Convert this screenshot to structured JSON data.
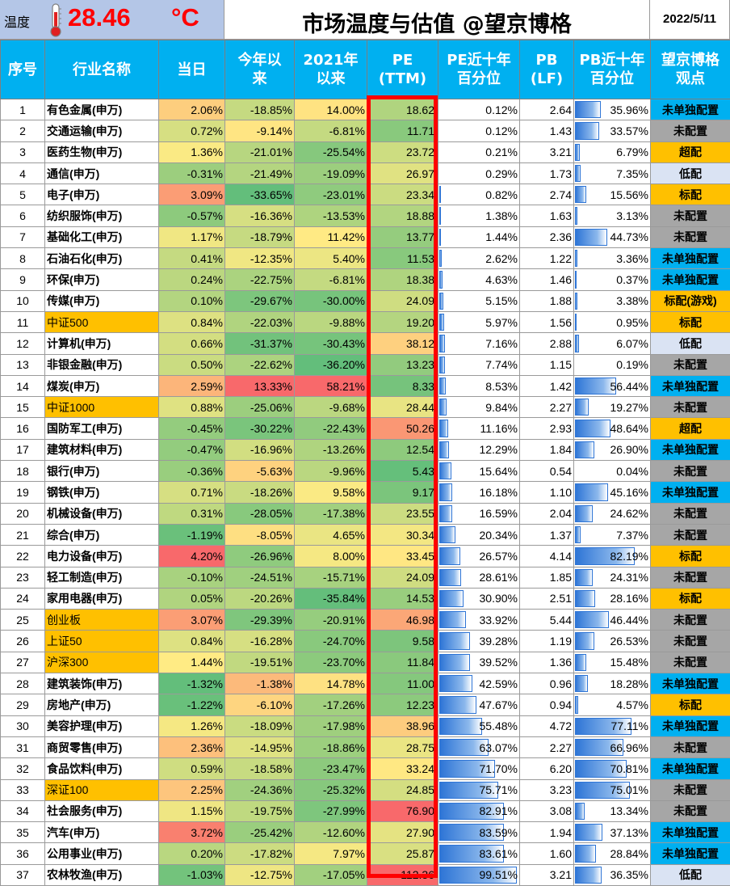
{
  "header": {
    "temp_label": "温度",
    "temp_value": "28.46",
    "temp_unit": "°C",
    "title": "市场温度与估值 @望京博格",
    "date": "2022/5/11"
  },
  "columns": [
    "序号",
    "行业名称",
    "当日",
    "今年以\n来",
    "2021年\n以来",
    "PE\n(TTM)",
    "PE近十年\n百分位",
    "PB\n(LF)",
    "PB近十年\n百分位",
    "望京博格\n观点"
  ],
  "rows": [
    {
      "idx": "1",
      "name": "有色金属(申万)",
      "day": "2.06%",
      "ytd": "-18.85%",
      "since21": "14.00%",
      "pe": "18.62",
      "pe_pct": "0.12%",
      "pb": "2.64",
      "pb_pct": "35.96%",
      "view": "未单独配置",
      "is_index": false
    },
    {
      "idx": "2",
      "name": "交通运输(申万)",
      "day": "0.72%",
      "ytd": "-9.14%",
      "since21": "-6.81%",
      "pe": "11.71",
      "pe_pct": "0.12%",
      "pb": "1.43",
      "pb_pct": "33.57%",
      "view": "未配置",
      "is_index": false
    },
    {
      "idx": "3",
      "name": "医药生物(申万)",
      "day": "1.36%",
      "ytd": "-21.01%",
      "since21": "-25.54%",
      "pe": "23.72",
      "pe_pct": "0.21%",
      "pb": "3.21",
      "pb_pct": "6.79%",
      "view": "超配",
      "is_index": false
    },
    {
      "idx": "4",
      "name": "通信(申万)",
      "day": "-0.31%",
      "ytd": "-21.49%",
      "since21": "-19.09%",
      "pe": "26.97",
      "pe_pct": "0.29%",
      "pb": "1.73",
      "pb_pct": "7.35%",
      "view": "低配",
      "is_index": false
    },
    {
      "idx": "5",
      "name": "电子(申万)",
      "day": "3.09%",
      "ytd": "-33.65%",
      "since21": "-23.01%",
      "pe": "23.34",
      "pe_pct": "0.82%",
      "pb": "2.74",
      "pb_pct": "15.56%",
      "view": "标配",
      "is_index": false
    },
    {
      "idx": "6",
      "name": "纺织服饰(申万)",
      "day": "-0.57%",
      "ytd": "-16.36%",
      "since21": "-13.53%",
      "pe": "18.88",
      "pe_pct": "1.38%",
      "pb": "1.63",
      "pb_pct": "3.13%",
      "view": "未配置",
      "is_index": false
    },
    {
      "idx": "7",
      "name": "基础化工(申万)",
      "day": "1.17%",
      "ytd": "-18.79%",
      "since21": "11.42%",
      "pe": "13.77",
      "pe_pct": "1.44%",
      "pb": "2.36",
      "pb_pct": "44.73%",
      "view": "未配置",
      "is_index": false
    },
    {
      "idx": "8",
      "name": "石油石化(申万)",
      "day": "0.41%",
      "ytd": "-12.35%",
      "since21": "5.40%",
      "pe": "11.53",
      "pe_pct": "2.62%",
      "pb": "1.22",
      "pb_pct": "3.36%",
      "view": "未单独配置",
      "is_index": false
    },
    {
      "idx": "9",
      "name": "环保(申万)",
      "day": "0.24%",
      "ytd": "-22.75%",
      "since21": "-6.81%",
      "pe": "18.38",
      "pe_pct": "4.63%",
      "pb": "1.46",
      "pb_pct": "0.37%",
      "view": "未单独配置",
      "is_index": false
    },
    {
      "idx": "10",
      "name": "传媒(申万)",
      "day": "0.10%",
      "ytd": "-29.67%",
      "since21": "-30.00%",
      "pe": "24.09",
      "pe_pct": "5.15%",
      "pb": "1.88",
      "pb_pct": "3.38%",
      "view": "标配(游戏)",
      "is_index": false
    },
    {
      "idx": "11",
      "name": "中证500",
      "day": "0.84%",
      "ytd": "-22.03%",
      "since21": "-9.88%",
      "pe": "19.20",
      "pe_pct": "5.97%",
      "pb": "1.56",
      "pb_pct": "0.95%",
      "view": "标配",
      "is_index": true
    },
    {
      "idx": "12",
      "name": "计算机(申万)",
      "day": "0.66%",
      "ytd": "-31.37%",
      "since21": "-30.43%",
      "pe": "38.12",
      "pe_pct": "7.16%",
      "pb": "2.88",
      "pb_pct": "6.07%",
      "view": "低配",
      "is_index": false
    },
    {
      "idx": "13",
      "name": "非银金融(申万)",
      "day": "0.50%",
      "ytd": "-22.62%",
      "since21": "-36.20%",
      "pe": "13.23",
      "pe_pct": "7.74%",
      "pb": "1.15",
      "pb_pct": "0.19%",
      "view": "未配置",
      "is_index": false
    },
    {
      "idx": "14",
      "name": "煤炭(申万)",
      "day": "2.59%",
      "ytd": "13.33%",
      "since21": "58.21%",
      "pe": "8.33",
      "pe_pct": "8.53%",
      "pb": "1.42",
      "pb_pct": "56.44%",
      "view": "未单独配置",
      "is_index": false
    },
    {
      "idx": "15",
      "name": "中证1000",
      "day": "0.88%",
      "ytd": "-25.06%",
      "since21": "-9.68%",
      "pe": "28.44",
      "pe_pct": "9.84%",
      "pb": "2.27",
      "pb_pct": "19.27%",
      "view": "未配置",
      "is_index": true
    },
    {
      "idx": "16",
      "name": "国防军工(申万)",
      "day": "-0.45%",
      "ytd": "-30.22%",
      "since21": "-22.43%",
      "pe": "50.26",
      "pe_pct": "11.16%",
      "pb": "2.93",
      "pb_pct": "48.64%",
      "view": "超配",
      "is_index": false
    },
    {
      "idx": "17",
      "name": "建筑材料(申万)",
      "day": "-0.47%",
      "ytd": "-16.96%",
      "since21": "-13.26%",
      "pe": "12.54",
      "pe_pct": "12.29%",
      "pb": "1.84",
      "pb_pct": "26.90%",
      "view": "未单独配置",
      "is_index": false
    },
    {
      "idx": "18",
      "name": "银行(申万)",
      "day": "-0.36%",
      "ytd": "-5.63%",
      "since21": "-9.96%",
      "pe": "5.43",
      "pe_pct": "15.64%",
      "pb": "0.54",
      "pb_pct": "0.04%",
      "view": "未配置",
      "is_index": false
    },
    {
      "idx": "19",
      "name": "钢铁(申万)",
      "day": "0.71%",
      "ytd": "-18.26%",
      "since21": "9.58%",
      "pe": "9.17",
      "pe_pct": "16.18%",
      "pb": "1.10",
      "pb_pct": "45.16%",
      "view": "未单独配置",
      "is_index": false
    },
    {
      "idx": "20",
      "name": "机械设备(申万)",
      "day": "0.31%",
      "ytd": "-28.05%",
      "since21": "-17.38%",
      "pe": "23.55",
      "pe_pct": "16.59%",
      "pb": "2.04",
      "pb_pct": "24.62%",
      "view": "未配置",
      "is_index": false
    },
    {
      "idx": "21",
      "name": "综合(申万)",
      "day": "-1.19%",
      "ytd": "-8.05%",
      "since21": "4.65%",
      "pe": "30.34",
      "pe_pct": "20.34%",
      "pb": "1.37",
      "pb_pct": "7.37%",
      "view": "未配置",
      "is_index": false
    },
    {
      "idx": "22",
      "name": "电力设备(申万)",
      "day": "4.20%",
      "ytd": "-26.96%",
      "since21": "8.00%",
      "pe": "33.45",
      "pe_pct": "26.57%",
      "pb": "4.14",
      "pb_pct": "82.19%",
      "view": "标配",
      "is_index": false
    },
    {
      "idx": "23",
      "name": "轻工制造(申万)",
      "day": "-0.10%",
      "ytd": "-24.51%",
      "since21": "-15.71%",
      "pe": "24.09",
      "pe_pct": "28.61%",
      "pb": "1.85",
      "pb_pct": "24.31%",
      "view": "未配置",
      "is_index": false
    },
    {
      "idx": "24",
      "name": "家用电器(申万)",
      "day": "0.05%",
      "ytd": "-20.26%",
      "since21": "-35.84%",
      "pe": "14.53",
      "pe_pct": "30.90%",
      "pb": "2.51",
      "pb_pct": "28.16%",
      "view": "标配",
      "is_index": false
    },
    {
      "idx": "25",
      "name": "创业板",
      "day": "3.07%",
      "ytd": "-29.39%",
      "since21": "-20.91%",
      "pe": "46.98",
      "pe_pct": "33.92%",
      "pb": "5.44",
      "pb_pct": "46.44%",
      "view": "未配置",
      "is_index": true
    },
    {
      "idx": "26",
      "name": "上证50",
      "day": "0.84%",
      "ytd": "-16.28%",
      "since21": "-24.70%",
      "pe": "9.58",
      "pe_pct": "39.28%",
      "pb": "1.19",
      "pb_pct": "26.53%",
      "view": "未配置",
      "is_index": true
    },
    {
      "idx": "27",
      "name": "沪深300",
      "day": "1.44%",
      "ytd": "-19.51%",
      "since21": "-23.70%",
      "pe": "11.84",
      "pe_pct": "39.52%",
      "pb": "1.36",
      "pb_pct": "15.48%",
      "view": "未配置",
      "is_index": true
    },
    {
      "idx": "28",
      "name": "建筑装饰(申万)",
      "day": "-1.32%",
      "ytd": "-1.38%",
      "since21": "14.78%",
      "pe": "11.00",
      "pe_pct": "42.59%",
      "pb": "0.96",
      "pb_pct": "18.28%",
      "view": "未单独配置",
      "is_index": false
    },
    {
      "idx": "29",
      "name": "房地产(申万)",
      "day": "-1.22%",
      "ytd": "-6.10%",
      "since21": "-17.26%",
      "pe": "12.23",
      "pe_pct": "47.67%",
      "pb": "0.94",
      "pb_pct": "4.57%",
      "view": "标配",
      "is_index": false
    },
    {
      "idx": "30",
      "name": "美容护理(申万)",
      "day": "1.26%",
      "ytd": "-18.09%",
      "since21": "-17.98%",
      "pe": "38.96",
      "pe_pct": "55.48%",
      "pb": "4.72",
      "pb_pct": "77.11%",
      "view": "未单独配置",
      "is_index": false
    },
    {
      "idx": "31",
      "name": "商贸零售(申万)",
      "day": "2.36%",
      "ytd": "-14.95%",
      "since21": "-18.86%",
      "pe": "28.75",
      "pe_pct": "63.07%",
      "pb": "2.27",
      "pb_pct": "66.96%",
      "view": "未配置",
      "is_index": false
    },
    {
      "idx": "32",
      "name": "食品饮料(申万)",
      "day": "0.59%",
      "ytd": "-18.58%",
      "since21": "-23.47%",
      "pe": "33.24",
      "pe_pct": "71.70%",
      "pb": "6.20",
      "pb_pct": "70.81%",
      "view": "未单独配置",
      "is_index": false
    },
    {
      "idx": "33",
      "name": "深证100",
      "day": "2.25%",
      "ytd": "-24.36%",
      "since21": "-25.32%",
      "pe": "24.85",
      "pe_pct": "75.71%",
      "pb": "3.23",
      "pb_pct": "75.01%",
      "view": "未配置",
      "is_index": true
    },
    {
      "idx": "34",
      "name": "社会服务(申万)",
      "day": "1.15%",
      "ytd": "-19.75%",
      "since21": "-27.99%",
      "pe": "76.90",
      "pe_pct": "82.91%",
      "pb": "3.08",
      "pb_pct": "13.34%",
      "view": "未配置",
      "is_index": false
    },
    {
      "idx": "35",
      "name": "汽车(申万)",
      "day": "3.72%",
      "ytd": "-25.42%",
      "since21": "-12.60%",
      "pe": "27.90",
      "pe_pct": "83.59%",
      "pb": "1.94",
      "pb_pct": "37.13%",
      "view": "未单独配置",
      "is_index": false
    },
    {
      "idx": "36",
      "name": "公用事业(申万)",
      "day": "0.20%",
      "ytd": "-17.82%",
      "since21": "7.97%",
      "pe": "25.87",
      "pe_pct": "83.61%",
      "pb": "1.60",
      "pb_pct": "28.84%",
      "view": "未单独配置",
      "is_index": false
    },
    {
      "idx": "37",
      "name": "农林牧渔(申万)",
      "day": "-1.03%",
      "ytd": "-12.75%",
      "since21": "-17.05%",
      "pe": "112.36",
      "pe_pct": "99.51%",
      "pb": "3.21",
      "pb_pct": "36.35%",
      "view": "低配",
      "is_index": false
    }
  ],
  "view_styles": {
    "未单独配置": {
      "bg": "#00b0f0",
      "fg": "#000000"
    },
    "未配置": {
      "bg": "#a6a6a6",
      "fg": "#000000"
    },
    "超配": {
      "bg": "#ffc000",
      "fg": "#000000"
    },
    "低配": {
      "bg": "#dae3f3",
      "fg": "#000000"
    },
    "标配": {
      "bg": "#ffc000",
      "fg": "#000000"
    },
    "标配(游戏)": {
      "bg": "#ffc000",
      "fg": "#000000"
    }
  },
  "colors": {
    "header_bg": "#00b0f0",
    "temp_bg": "#b4c6e7",
    "temp_text": "#ff0000",
    "index_row_bg": "#ffc000",
    "highlight_frame": "#ff0000",
    "heat_low": "#63be7b",
    "heat_mid": "#ffeb84",
    "heat_high": "#f8696b"
  },
  "icons": {
    "thermometer": "thermometer-icon"
  }
}
